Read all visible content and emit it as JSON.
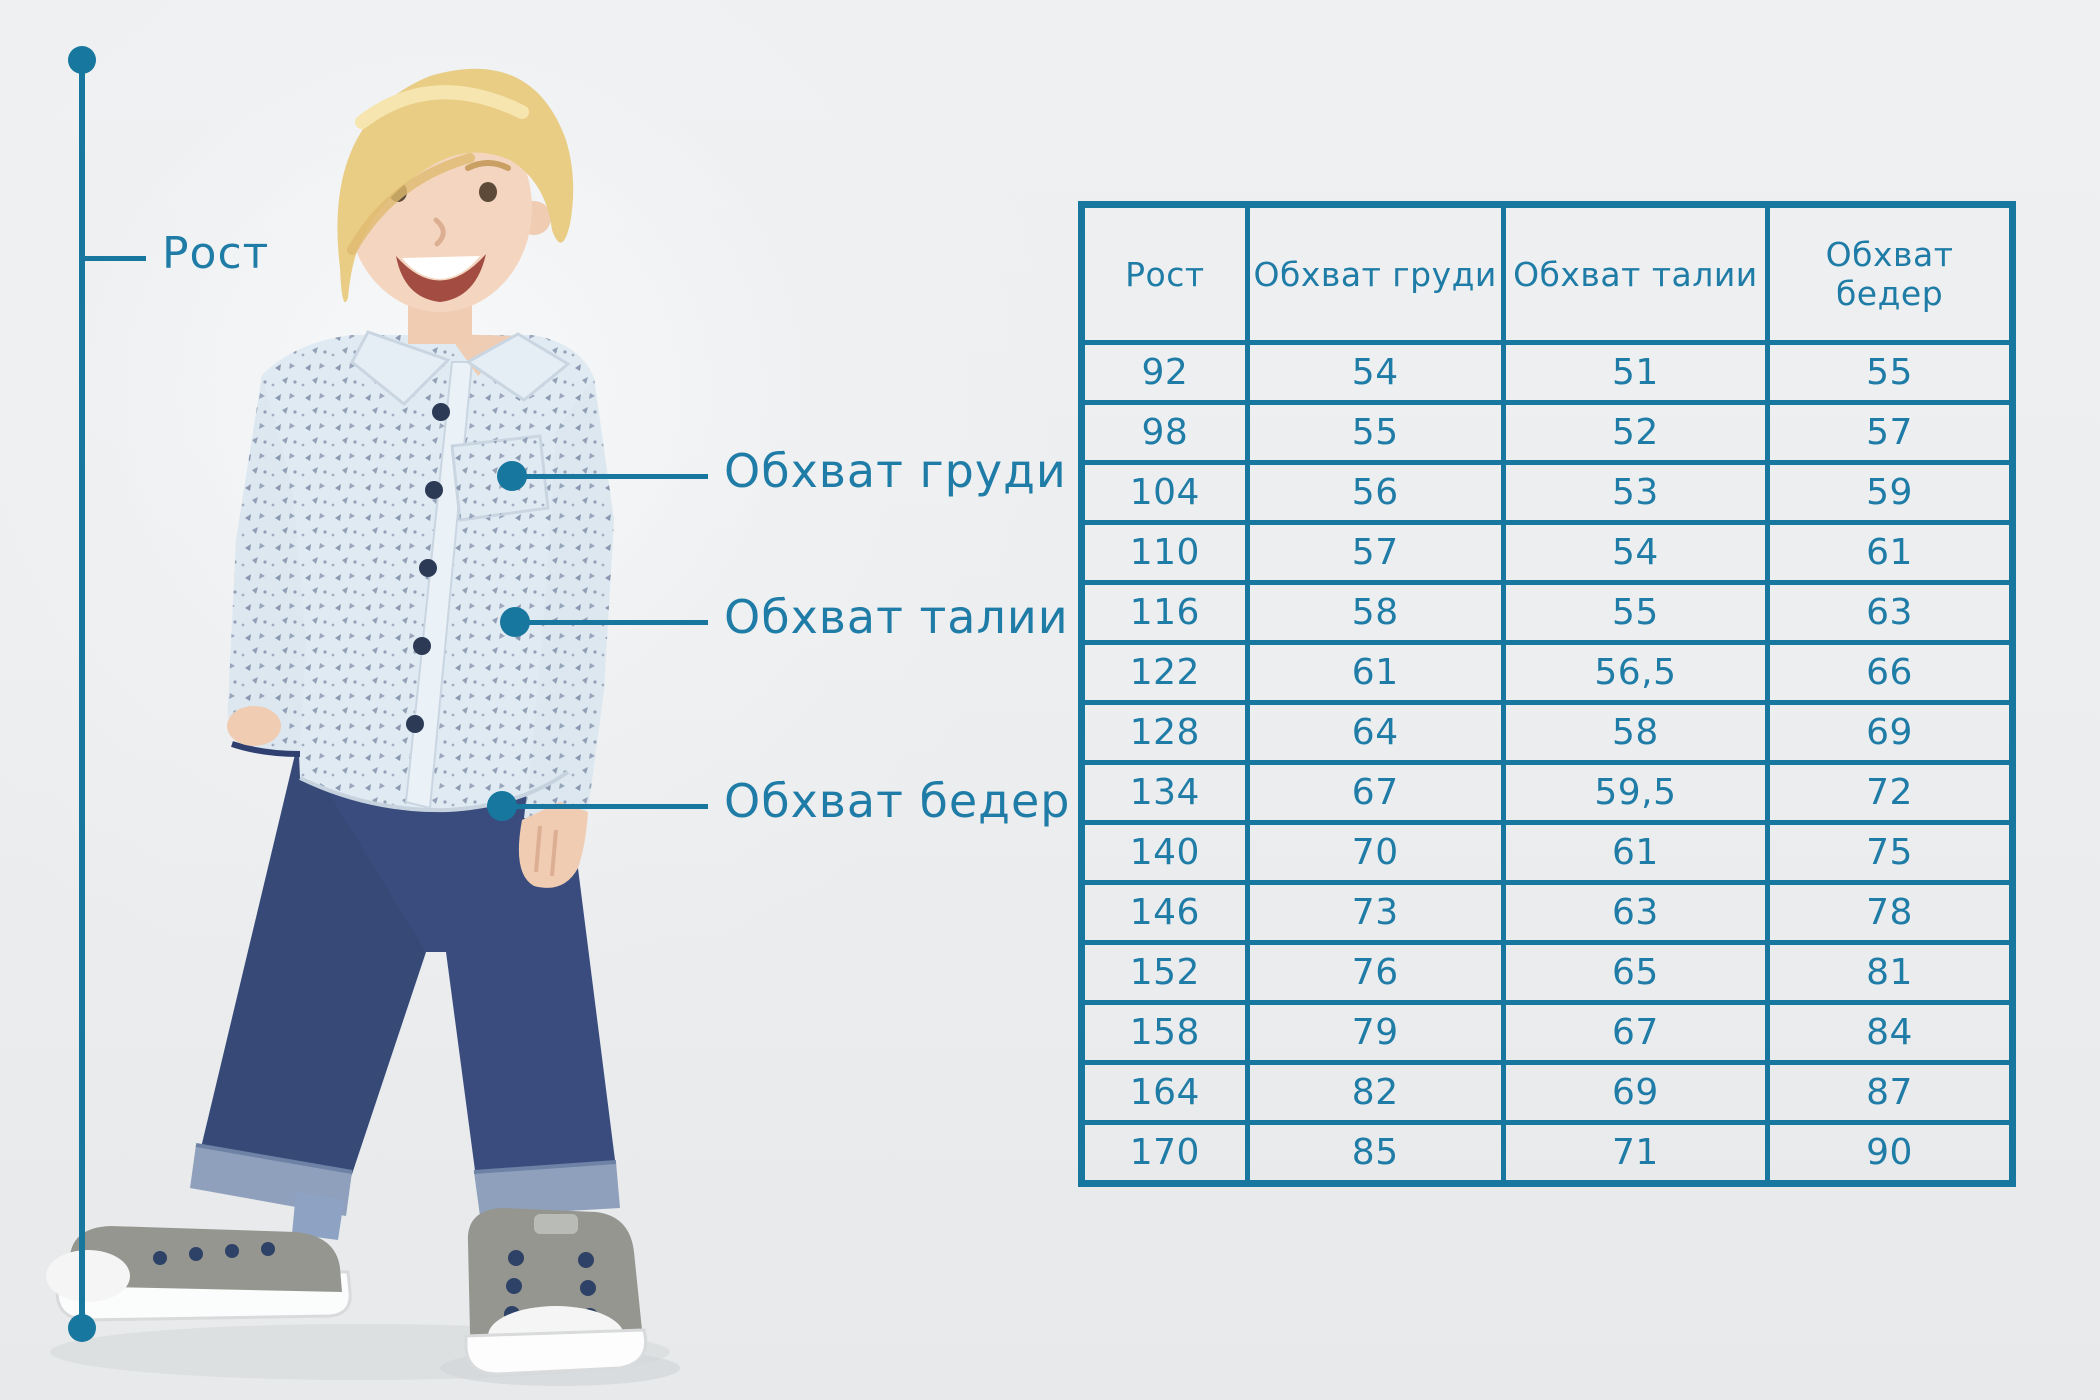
{
  "accent": {
    "teal": "#17779f",
    "text_teal": "#1f7ca6"
  },
  "figure": {
    "height_label": "Рост"
  },
  "callouts": [
    {
      "id": "chest",
      "label": "Обхват груди"
    },
    {
      "id": "waist",
      "label": "Обхват талии"
    },
    {
      "id": "hips",
      "label": "Обхват бедер"
    }
  ],
  "table": {
    "columns": [
      "Рост",
      "Обхват груди",
      "Обхват талии",
      "Обхват бедер"
    ],
    "rows": [
      [
        "92",
        "54",
        "51",
        "55"
      ],
      [
        "98",
        "55",
        "52",
        "57"
      ],
      [
        "104",
        "56",
        "53",
        "59"
      ],
      [
        "110",
        "57",
        "54",
        "61"
      ],
      [
        "116",
        "58",
        "55",
        "63"
      ],
      [
        "122",
        "61",
        "56,5",
        "66"
      ],
      [
        "128",
        "64",
        "58",
        "69"
      ],
      [
        "134",
        "67",
        "59,5",
        "72"
      ],
      [
        "140",
        "70",
        "61",
        "75"
      ],
      [
        "146",
        "73",
        "63",
        "78"
      ],
      [
        "152",
        "76",
        "65",
        "81"
      ],
      [
        "158",
        "79",
        "67",
        "84"
      ],
      [
        "164",
        "82",
        "69",
        "87"
      ],
      [
        "170",
        "85",
        "71",
        "90"
      ]
    ]
  }
}
